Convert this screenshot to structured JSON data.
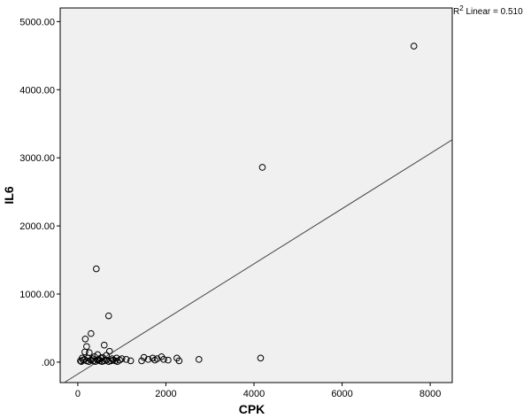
{
  "chart_data": {
    "type": "scatter",
    "xlabel": "CPK",
    "ylabel": "IL6",
    "xlim": [
      -400,
      8500
    ],
    "ylim": [
      -300,
      5200
    ],
    "x_ticks": [
      0,
      2000,
      4000,
      6000,
      8000
    ],
    "x_tick_labels": [
      "0",
      "2000",
      "4000",
      "6000",
      "8000"
    ],
    "y_ticks": [
      0,
      1000,
      2000,
      3000,
      4000,
      5000
    ],
    "y_tick_labels": [
      ".00",
      "1000.00",
      "2000.00",
      "3000.00",
      "4000.00",
      "5000.00"
    ],
    "fit_line": {
      "label_prefix": "R",
      "label_sup": "2",
      "label_rest": " Linear = 0.510",
      "intercept": -175,
      "slope": 0.4047
    },
    "grid": false,
    "colors": {
      "plot_bg": "#f0f0f0",
      "point_stroke": "#000000",
      "line": "#404040"
    },
    "points": [
      [
        7630,
        4640
      ],
      [
        4190,
        2860
      ],
      [
        420,
        1370
      ],
      [
        700,
        680
      ],
      [
        300,
        420
      ],
      [
        170,
        340
      ],
      [
        600,
        250
      ],
      [
        200,
        230
      ],
      [
        160,
        150
      ],
      [
        260,
        140
      ],
      [
        720,
        160
      ],
      [
        650,
        100
      ],
      [
        450,
        110
      ],
      [
        380,
        80
      ],
      [
        520,
        60
      ],
      [
        100,
        60
      ],
      [
        150,
        40
      ],
      [
        60,
        20
      ],
      [
        80,
        10
      ],
      [
        120,
        30
      ],
      [
        200,
        20
      ],
      [
        250,
        10
      ],
      [
        300,
        30
      ],
      [
        350,
        20
      ],
      [
        400,
        10
      ],
      [
        450,
        30
      ],
      [
        500,
        20
      ],
      [
        550,
        10
      ],
      [
        600,
        20
      ],
      [
        650,
        30
      ],
      [
        700,
        10
      ],
      [
        750,
        20
      ],
      [
        800,
        30
      ],
      [
        850,
        20
      ],
      [
        900,
        10
      ],
      [
        950,
        30
      ],
      [
        1000,
        50
      ],
      [
        1100,
        40
      ],
      [
        1200,
        20
      ],
      [
        1450,
        20
      ],
      [
        1500,
        70
      ],
      [
        1600,
        40
      ],
      [
        1700,
        60
      ],
      [
        1750,
        30
      ],
      [
        1800,
        50
      ],
      [
        1900,
        80
      ],
      [
        1950,
        40
      ],
      [
        2050,
        30
      ],
      [
        2250,
        60
      ],
      [
        2300,
        20
      ],
      [
        2750,
        40
      ],
      [
        4150,
        60
      ],
      [
        230,
        60
      ],
      [
        330,
        50
      ],
      [
        480,
        40
      ],
      [
        560,
        70
      ],
      [
        780,
        50
      ],
      [
        880,
        60
      ]
    ]
  }
}
